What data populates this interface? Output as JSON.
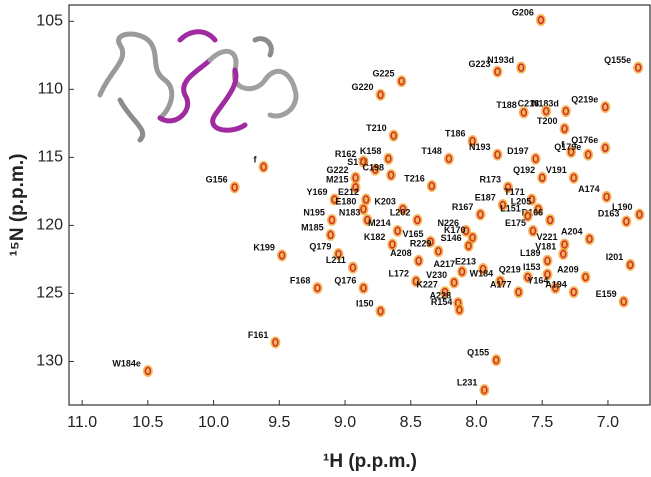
{
  "chart_data": {
    "type": "scatter",
    "xlabel": "¹H (p.p.m.)",
    "ylabel": "¹⁵N (p.p.m.)",
    "xlim": [
      11.1,
      6.68
    ],
    "ylim": [
      103.8,
      133.2
    ],
    "xticks": [
      {
        "value": 11,
        "label": "11.0"
      },
      10.5,
      {
        "value": 10,
        "label": "10.0"
      },
      9.5,
      {
        "value": 9,
        "label": "9.0"
      },
      8.5,
      {
        "value": 8,
        "label": "8.0"
      },
      7.5,
      {
        "value": 7,
        "label": "7.0"
      }
    ],
    "yticks": [
      105,
      110,
      115,
      120,
      125,
      130
    ],
    "color": "#f0a020",
    "center_color": "#d0302a",
    "labels": [
      "G206",
      "N193d",
      "Q155e",
      "G223",
      "G225",
      "G220",
      "N183d",
      "C218",
      "Q219e",
      "T188",
      "T210",
      "T186",
      "T200",
      "f",
      "f",
      "Q176e",
      "Q179e",
      "K158",
      "S178",
      "T148",
      "N193",
      "D197",
      "G156",
      "R162",
      "G222",
      "C198",
      "Q192",
      "V191",
      "T216",
      "M215",
      "R173",
      "Y169",
      "E212",
      "T171",
      "E187",
      "L205",
      "A174",
      "E180",
      "K203",
      "D166",
      "L190",
      "L151",
      "N195",
      "N183",
      "L202",
      "R167",
      "D163",
      "M214",
      "N226",
      "M185",
      "K182",
      "V165",
      "K170",
      "E175",
      "A204",
      "V221",
      "S146",
      "R229",
      "V181",
      "K199",
      "Q179",
      "A208",
      "L189",
      "I201",
      "E213",
      "L211",
      "Q219",
      "A209",
      "I153",
      "A217",
      "W184",
      "L172",
      "V230",
      "F168",
      "Q176",
      "K227",
      "A177",
      "Y164",
      "A194",
      "E159",
      "A228",
      "I150",
      "R154",
      "F161",
      "Q155",
      "W184e",
      "L231"
    ],
    "x": [
      7.51,
      7.66,
      6.77,
      7.84,
      8.57,
      8.73,
      7.32,
      7.47,
      7.02,
      7.64,
      8.63,
      8.03,
      7.33,
      9.62,
      7.28,
      7.02,
      7.15,
      8.67,
      8.77,
      8.21,
      7.84,
      7.55,
      9.84,
      8.86,
      8.92,
      8.65,
      7.5,
      7.26,
      8.34,
      8.92,
      7.76,
      9.08,
      8.84,
      7.58,
      7.8,
      7.53,
      7.01,
      8.86,
      8.56,
      7.44,
      6.76,
      7.61,
      9.1,
      8.83,
      8.45,
      7.97,
      6.86,
      8.6,
      8.08,
      9.11,
      8.64,
      8.35,
      8.03,
      7.57,
      7.14,
      7.33,
      8.06,
      8.29,
      7.34,
      9.48,
      9.05,
      8.44,
      7.46,
      6.83,
      7.95,
      8.94,
      7.61,
      7.17,
      7.46,
      8.11,
      7.82,
      8.46,
      8.17,
      9.21,
      8.86,
      8.24,
      7.68,
      7.4,
      7.26,
      6.88,
      8.14,
      8.73,
      8.13,
      9.53,
      7.85,
      10.5,
      7.94
    ],
    "values": [
      104.9,
      108.4,
      108.4,
      108.7,
      109.4,
      110.4,
      111.6,
      111.6,
      111.3,
      111.7,
      113.4,
      113.8,
      112.9,
      115.7,
      114.6,
      114.3,
      114.8,
      115.1,
      115.9,
      115.1,
      114.8,
      115.1,
      117.2,
      115.3,
      116.5,
      116.3,
      116.5,
      116.5,
      117.1,
      117.2,
      117.2,
      118.1,
      118.1,
      118.1,
      118.5,
      118.8,
      117.9,
      118.8,
      118.8,
      119.6,
      119.2,
      119.3,
      119.6,
      119.6,
      119.6,
      119.2,
      119.7,
      120.4,
      120.4,
      120.7,
      121.4,
      121.2,
      120.9,
      120.4,
      121.0,
      121.4,
      121.5,
      121.9,
      122.1,
      122.2,
      122.1,
      122.6,
      122.6,
      122.9,
      123.2,
      123.1,
      123.8,
      123.8,
      123.6,
      123.4,
      124.1,
      124.1,
      124.2,
      124.6,
      124.6,
      124.9,
      124.9,
      124.6,
      124.9,
      125.6,
      125.7,
      126.3,
      126.2,
      128.6,
      129.9,
      130.7,
      132.1
    ]
  }
}
